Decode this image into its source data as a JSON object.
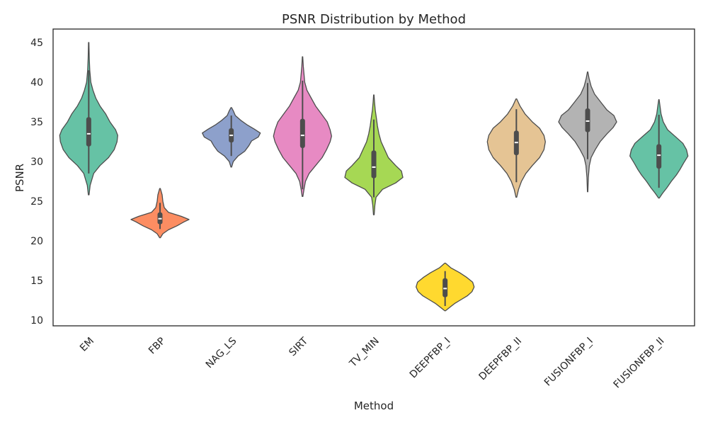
{
  "chart_data": {
    "type": "violin",
    "title": "PSNR Distribution by Method",
    "xlabel": "Method",
    "ylabel": "PSNR",
    "ylim": [
      9.3,
      46.7
    ],
    "yticks": [
      10,
      15,
      20,
      25,
      30,
      35,
      40,
      45
    ],
    "grid": false,
    "categories": [
      "EM",
      "FBP",
      "NAG_LS",
      "SIRT",
      "TV_MIN",
      "DEEPFBP_I",
      "DEEPFBP_II",
      "FUSIONFBP_I",
      "FUSIONFBP_II"
    ],
    "colors": [
      "#66c2a5",
      "#fc8d62",
      "#8da0cb",
      "#e78ac3",
      "#a6d854",
      "#ffd92f",
      "#e5c494",
      "#b3b3b3",
      "#66c2a5"
    ],
    "series": [
      {
        "min": 25.8,
        "q1": 31.9,
        "median": 33.5,
        "q3": 35.6,
        "max": 45.0,
        "whisker_low": 28.5,
        "whisker_high": 41.5,
        "profile": [
          [
            25.8,
            0.5
          ],
          [
            27,
            2
          ],
          [
            28.5,
            7
          ],
          [
            29.5,
            16
          ],
          [
            30.5,
            28
          ],
          [
            31.5,
            36
          ],
          [
            32.5,
            40
          ],
          [
            33.3,
            41
          ],
          [
            34,
            38
          ],
          [
            35,
            30
          ],
          [
            36,
            24
          ],
          [
            37,
            16
          ],
          [
            38,
            10
          ],
          [
            39,
            6
          ],
          [
            40,
            3
          ],
          [
            41.5,
            1.5
          ],
          [
            43,
            0.8
          ],
          [
            45,
            0.3
          ]
        ]
      },
      {
        "min": 20.4,
        "q1": 22.1,
        "median": 22.8,
        "q3": 23.6,
        "max": 26.6,
        "whisker_low": 21.5,
        "whisker_high": 24.8,
        "profile": [
          [
            20.4,
            0.5
          ],
          [
            20.9,
            4
          ],
          [
            21.4,
            12
          ],
          [
            21.9,
            24
          ],
          [
            22.4,
            34
          ],
          [
            22.7,
            41
          ],
          [
            23.1,
            30
          ],
          [
            23.6,
            12
          ],
          [
            24.2,
            6
          ],
          [
            25,
            4
          ],
          [
            25.8,
            3
          ],
          [
            26.6,
            0.5
          ]
        ]
      },
      {
        "min": 29.3,
        "q1": 32.4,
        "median": 33.3,
        "q3": 34.2,
        "max": 36.8,
        "whisker_low": 30.7,
        "whisker_high": 35.8,
        "profile": [
          [
            29.3,
            0.5
          ],
          [
            30,
            3
          ],
          [
            30.7,
            10
          ],
          [
            31.3,
            20
          ],
          [
            32,
            26
          ],
          [
            32.6,
            30
          ],
          [
            33.1,
            40
          ],
          [
            33.6,
            43
          ],
          [
            34.1,
            34
          ],
          [
            34.6,
            24
          ],
          [
            35.2,
            14
          ],
          [
            35.8,
            6
          ],
          [
            36.4,
            3
          ],
          [
            36.8,
            0.5
          ]
        ]
      },
      {
        "min": 25.6,
        "q1": 31.7,
        "median": 33.3,
        "q3": 35.4,
        "max": 43.2,
        "whisker_low": 26.5,
        "whisker_high": 40.2,
        "profile": [
          [
            25.6,
            0.5
          ],
          [
            26.5,
            2
          ],
          [
            27.5,
            4
          ],
          [
            28.5,
            9
          ],
          [
            29.5,
            18
          ],
          [
            30.5,
            27
          ],
          [
            31.5,
            33
          ],
          [
            32.5,
            38
          ],
          [
            33.2,
            40
          ],
          [
            34,
            38
          ],
          [
            35,
            34
          ],
          [
            36,
            26
          ],
          [
            37,
            18
          ],
          [
            38,
            12
          ],
          [
            39,
            6
          ],
          [
            40,
            3
          ],
          [
            41,
            2
          ],
          [
            42,
            1
          ],
          [
            43.2,
            0.3
          ]
        ]
      },
      {
        "min": 23.3,
        "q1": 27.9,
        "median": 29.3,
        "q3": 31.4,
        "max": 38.4,
        "whisker_low": 25.5,
        "whisker_high": 35.3,
        "profile": [
          [
            23.3,
            0.5
          ],
          [
            24.5,
            1.5
          ],
          [
            25.5,
            3
          ],
          [
            26.5,
            12
          ],
          [
            27.3,
            30
          ],
          [
            28,
            40
          ],
          [
            28.8,
            38
          ],
          [
            29.5,
            30
          ],
          [
            30.5,
            20
          ],
          [
            31.5,
            15
          ],
          [
            32.5,
            10
          ],
          [
            33.5,
            7
          ],
          [
            34.5,
            5
          ],
          [
            35.5,
            3.5
          ],
          [
            36.5,
            2
          ],
          [
            37.5,
            1
          ],
          [
            38.4,
            0.3
          ]
        ]
      },
      {
        "min": 11.2,
        "q1": 12.9,
        "median": 14.0,
        "q3": 15.3,
        "max": 17.2,
        "whisker_low": 11.8,
        "whisker_high": 16.2,
        "profile": [
          [
            11.2,
            0.5
          ],
          [
            11.6,
            6
          ],
          [
            12.1,
            13
          ],
          [
            12.6,
            22
          ],
          [
            13.1,
            31
          ],
          [
            13.6,
            37
          ],
          [
            14.2,
            40
          ],
          [
            14.8,
            38
          ],
          [
            15.4,
            30
          ],
          [
            16,
            20
          ],
          [
            16.6,
            8
          ],
          [
            17.2,
            0.5
          ]
        ]
      },
      {
        "min": 25.5,
        "q1": 30.8,
        "median": 32.4,
        "q3": 33.9,
        "max": 37.9,
        "whisker_low": 27.4,
        "whisker_high": 36.6,
        "profile": [
          [
            25.5,
            0.5
          ],
          [
            26.5,
            3
          ],
          [
            27.5,
            7
          ],
          [
            28.5,
            13
          ],
          [
            29.5,
            22
          ],
          [
            30.5,
            32
          ],
          [
            31.5,
            38
          ],
          [
            32.5,
            40
          ],
          [
            33.3,
            38
          ],
          [
            34.2,
            32
          ],
          [
            35,
            22
          ],
          [
            36,
            12
          ],
          [
            37,
            5
          ],
          [
            37.9,
            0.5
          ]
        ]
      },
      {
        "min": 26.2,
        "q1": 33.7,
        "median": 35.1,
        "q3": 36.7,
        "max": 41.3,
        "whisker_low": 30.3,
        "whisker_high": 39.9,
        "profile": [
          [
            26.2,
            0.3
          ],
          [
            28,
            1
          ],
          [
            29.5,
            2.5
          ],
          [
            30.5,
            5
          ],
          [
            31.5,
            11
          ],
          [
            32.5,
            18
          ],
          [
            33.5,
            28
          ],
          [
            34.3,
            37
          ],
          [
            35,
            42
          ],
          [
            35.8,
            38
          ],
          [
            36.5,
            28
          ],
          [
            37.5,
            19
          ],
          [
            38.5,
            10
          ],
          [
            39.5,
            5
          ],
          [
            40.5,
            2
          ],
          [
            41.3,
            0.3
          ]
        ]
      },
      {
        "min": 25.4,
        "q1": 29.1,
        "median": 30.8,
        "q3": 32.2,
        "max": 37.8,
        "whisker_low": 26.7,
        "whisker_high": 35.9,
        "profile": [
          [
            25.4,
            0.5
          ],
          [
            26,
            5
          ],
          [
            26.7,
            11
          ],
          [
            27.5,
            17
          ],
          [
            28.3,
            24
          ],
          [
            29,
            29
          ],
          [
            29.8,
            34
          ],
          [
            30.7,
            40
          ],
          [
            31.5,
            38
          ],
          [
            32.3,
            33
          ],
          [
            33.2,
            22
          ],
          [
            34,
            12
          ],
          [
            35,
            6
          ],
          [
            36,
            3
          ],
          [
            37,
            1.5
          ],
          [
            37.8,
            0.3
          ]
        ]
      }
    ]
  }
}
